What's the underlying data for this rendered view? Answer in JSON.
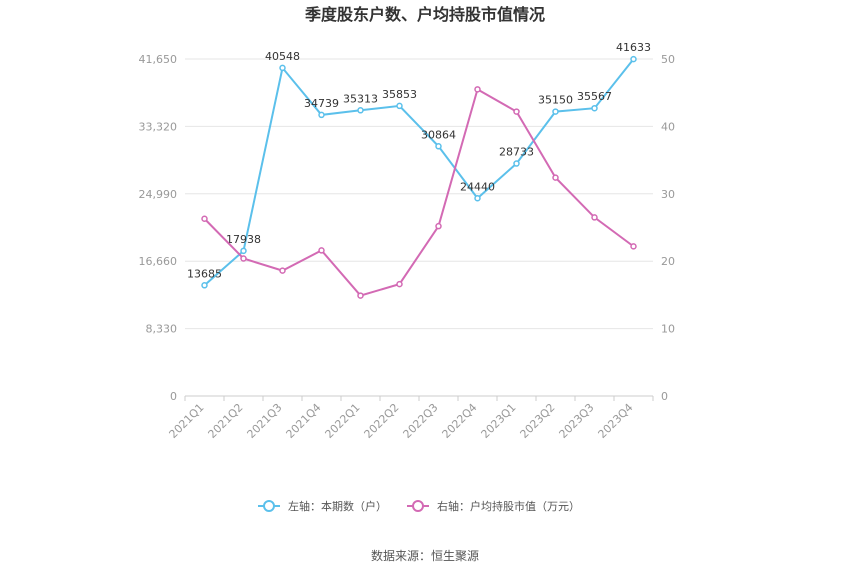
{
  "chart_data": {
    "type": "line",
    "title": "季度股东户数、户均持股市值情况",
    "categories": [
      "2021Q1",
      "2021Q2",
      "2021Q3",
      "2021Q4",
      "2022Q1",
      "2022Q2",
      "2022Q3",
      "2022Q4",
      "2023Q1",
      "2023Q2",
      "2023Q3",
      "2023Q4"
    ],
    "series": [
      {
        "name": "左轴：本期数（户）",
        "axis": "left",
        "color": "#5bc0eb",
        "values": [
          13685,
          17938,
          40548,
          34739,
          35313,
          35853,
          30864,
          24440,
          28733,
          35150,
          35567,
          41633
        ],
        "show_labels": true
      },
      {
        "name": "右轴：户均持股市值（万元）",
        "axis": "right",
        "color": "#d36ab4",
        "values": [
          26.3,
          20.4,
          18.6,
          21.6,
          14.9,
          16.6,
          25.2,
          45.5,
          42.2,
          32.4,
          26.5,
          22.2
        ],
        "show_labels": false
      }
    ],
    "left_axis": {
      "min": 0,
      "max": 41650,
      "ticks": [
        "0",
        "8,330",
        "16,660",
        "24,990",
        "33,320",
        "41,650"
      ]
    },
    "right_axis": {
      "min": 0,
      "max": 50,
      "ticks": [
        "0",
        "10",
        "20",
        "30",
        "40",
        "50"
      ]
    },
    "grid": true,
    "legend_position": "bottom"
  },
  "source": "数据来源：恒生聚源"
}
